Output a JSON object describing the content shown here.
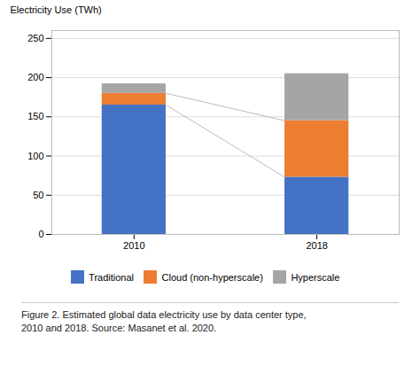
{
  "chart_data": {
    "type": "bar",
    "stacked": true,
    "categories": [
      "2010",
      "2018"
    ],
    "series": [
      {
        "name": "Traditional",
        "color": "#4472C4",
        "values": [
          165,
          73
        ]
      },
      {
        "name": "Cloud (non-hyperscale)",
        "color": "#ED7D31",
        "values": [
          15,
          72
        ]
      },
      {
        "name": "Hyperscale",
        "color": "#A5A5A5",
        "values": [
          12,
          60
        ]
      }
    ],
    "ylabel": "Electricity Use (TWh)",
    "ylim": [
      0,
      260
    ],
    "yticks": [
      0,
      50,
      100,
      150,
      200,
      250
    ],
    "grid": true,
    "legend": "bottom",
    "caption": [
      "Figure 2. Estimated global data electricity use by data center type,",
      "2010 and 2018. Source: Masanet et al. 2020."
    ]
  }
}
